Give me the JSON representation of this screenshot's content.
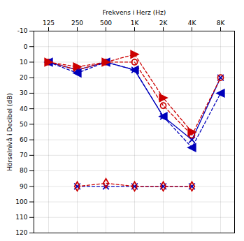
{
  "chart_data": {
    "type": "line",
    "xlabel": "Frekvens i Herz (Hz)",
    "ylabel": "Hörselnivå i Decibel (dB)",
    "categories": [
      "125",
      "250",
      "500",
      "1K",
      "2K",
      "4K",
      "8K"
    ],
    "ylim": [
      120,
      -10
    ],
    "yticks": [
      -10,
      0,
      10,
      20,
      30,
      40,
      50,
      60,
      70,
      80,
      90,
      100,
      110,
      120
    ],
    "grid": true,
    "series": [
      {
        "color": "#0000bb",
        "marker": "x",
        "line_style": "solid",
        "values": [
          10,
          15,
          10,
          15,
          45,
          60,
          20
        ]
      },
      {
        "color": "#cc0000",
        "marker": "o",
        "line_style": "dashed",
        "values": [
          10,
          15,
          10,
          10,
          38,
          57,
          20
        ]
      },
      {
        "color": "#0000bb",
        "marker": "caretleft",
        "line_style": "dashed",
        "values": [
          10,
          17,
          10,
          15,
          45,
          65,
          30
        ]
      },
      {
        "color": "#cc0000",
        "marker": "caretright",
        "line_style": "dashed",
        "values": [
          10,
          13,
          10,
          5,
          33,
          55,
          null
        ]
      },
      {
        "color": "#0000bb",
        "marker": "x",
        "line_style": "dashed",
        "values": [
          null,
          90,
          90,
          90,
          90,
          90,
          null
        ]
      },
      {
        "color": "#cc0000",
        "marker": "diamond",
        "line_style": "dashed",
        "values": [
          null,
          90,
          88,
          90,
          90,
          90,
          null
        ]
      }
    ]
  }
}
